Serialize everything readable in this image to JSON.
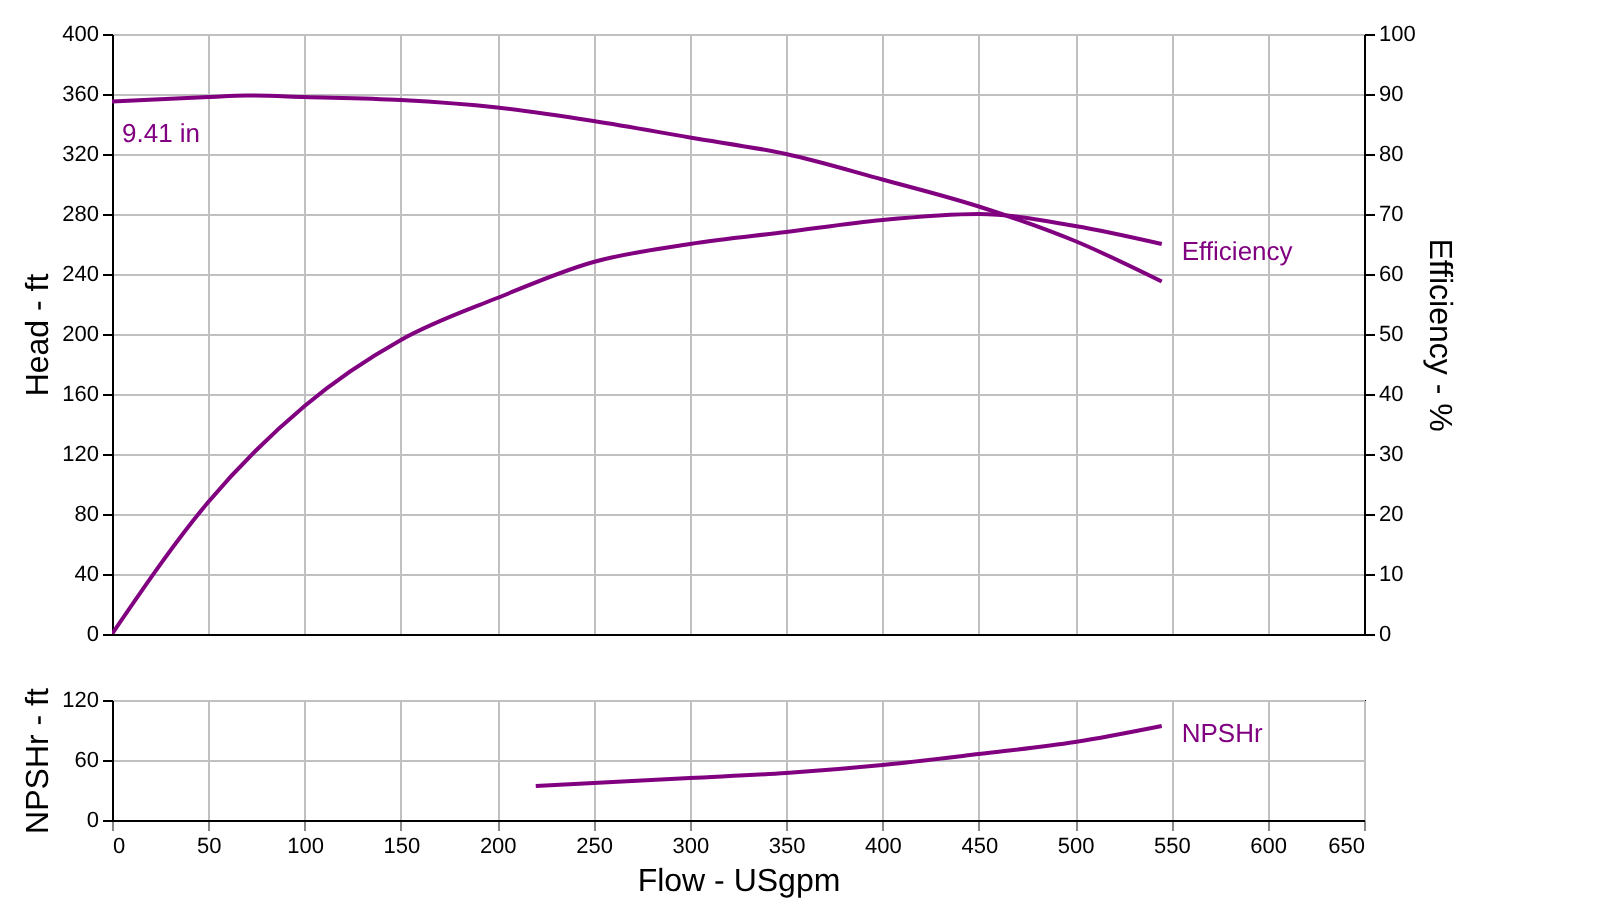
{
  "chart_data": [
    {
      "type": "line",
      "xlim": [
        0,
        650
      ],
      "xticks": [
        0,
        50,
        100,
        150,
        200,
        250,
        300,
        350,
        400,
        450,
        500,
        550,
        600,
        650
      ],
      "ylim": [
        0,
        400
      ],
      "yticks": [
        0,
        40,
        80,
        120,
        160,
        200,
        240,
        280,
        320,
        360,
        400
      ],
      "y2lim": [
        0,
        100
      ],
      "y2ticks": [
        0,
        10,
        20,
        30,
        40,
        50,
        60,
        70,
        80,
        90,
        100
      ],
      "ylabel": "Head - ft",
      "y2label": "Efficiency - %",
      "grid": true,
      "tick_labels": "y",
      "annotations": [
        "9.41 in"
      ],
      "series": [
        {
          "color": "#800080",
          "x": [
            0,
            50,
            70,
            100,
            150,
            200,
            250,
            300,
            350,
            400,
            450,
            500,
            545
          ],
          "values": [
            355,
            358,
            359,
            358,
            356,
            351,
            342,
            331,
            320,
            303,
            285,
            262,
            235
          ]
        },
        {
          "name": "Efficiency",
          "color": "#800080",
          "axis": "y2",
          "x": [
            0,
            50,
            100,
            150,
            200,
            250,
            300,
            350,
            400,
            450,
            500,
            545
          ],
          "values": [
            0,
            22,
            38,
            49,
            56,
            62,
            65,
            67,
            69,
            70,
            68,
            65
          ]
        }
      ]
    },
    {
      "type": "line",
      "xlim": [
        0,
        650
      ],
      "xticks": [
        0,
        50,
        100,
        150,
        200,
        250,
        300,
        350,
        400,
        450,
        500,
        550,
        600,
        650
      ],
      "ylim": [
        0,
        120
      ],
      "yticks": [
        0,
        60,
        120
      ],
      "xlabel": "Flow - USgpm",
      "ylabel": "NPSHr - ft",
      "grid": true,
      "series": [
        {
          "name": "NPSHr",
          "color": "#800080",
          "x": [
            220,
            250,
            300,
            350,
            400,
            450,
            500,
            545
          ],
          "values": [
            34,
            37,
            42,
            47,
            55,
            66,
            78,
            94
          ]
        }
      ]
    }
  ]
}
